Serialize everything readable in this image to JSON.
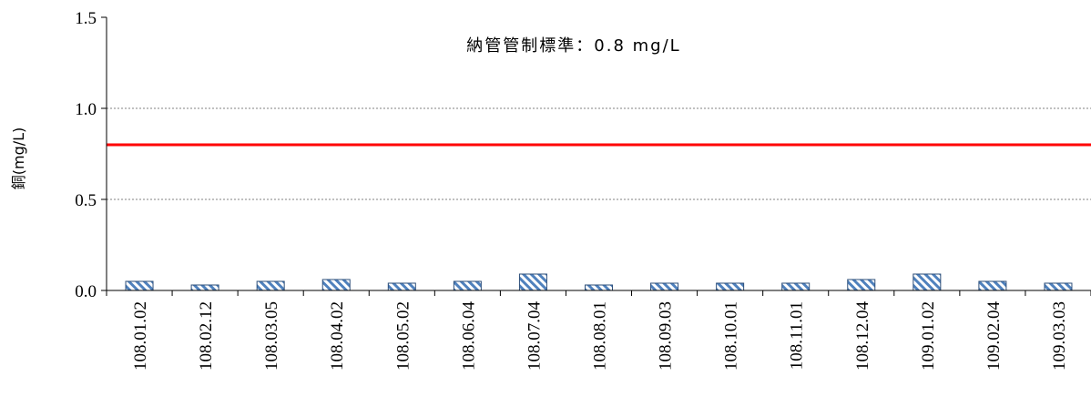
{
  "chart_data": {
    "type": "bar",
    "title": "",
    "xlabel": "",
    "ylabel": "銅(mg/L)",
    "ylim": [
      0,
      1.5
    ],
    "yticks": [
      "0.0",
      "0.5",
      "1.0",
      "1.5"
    ],
    "ytick_values": [
      0,
      0.5,
      1.0,
      1.5
    ],
    "grid": "horizontal-dotted",
    "categories": [
      "108.01.02",
      "108.02.12",
      "108.03.05",
      "108.04.02",
      "108.05.02",
      "108.06.04",
      "108.07.04",
      "108.08.01",
      "108.09.03",
      "108.10.01",
      "108.11.01",
      "108.12.04",
      "109.01.02",
      "109.02.04",
      "109.03.03"
    ],
    "values": [
      0.05,
      0.03,
      0.05,
      0.06,
      0.04,
      0.05,
      0.09,
      0.03,
      0.04,
      0.04,
      0.04,
      0.06,
      0.09,
      0.05,
      0.04
    ],
    "bar_color": "#4f81bd",
    "reference_line": {
      "value": 0.8,
      "color": "#ff0000"
    },
    "annotation": "納管管制標準：0.8 mg/L"
  }
}
